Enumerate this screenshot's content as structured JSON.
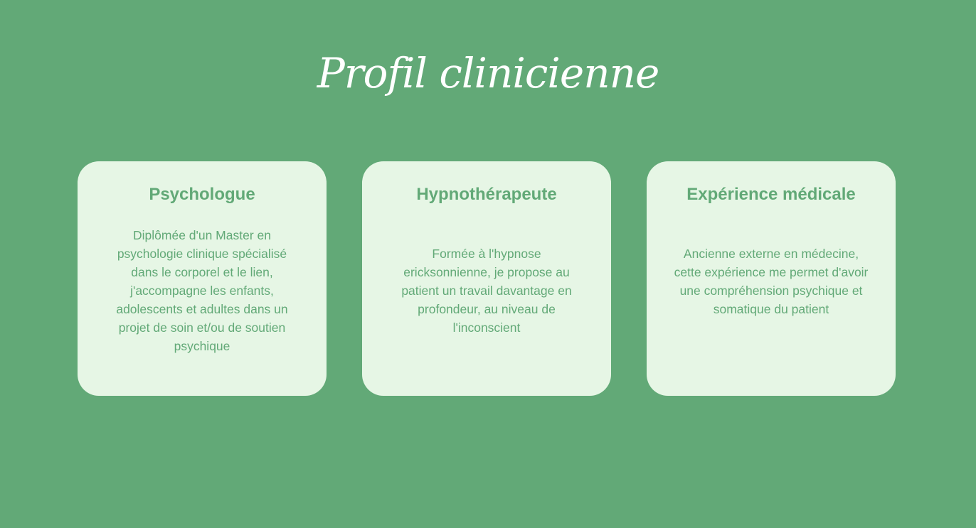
{
  "section": {
    "title": "Profil clinicienne",
    "cards": [
      {
        "title": "Psychologue",
        "text": "Diplômée d'un Master en psychologie clinique spécialisé dans le corporel et le lien, j'accompagne les enfants, adolescents et adultes dans un projet de soin et/ou de soutien psychique"
      },
      {
        "title": "Hypnothérapeute",
        "text": "Formée à l'hypnose ericksonnienne, je propose au patient un travail davantage en profondeur, au niveau de l'inconscient"
      },
      {
        "title": "Expérience médicale",
        "text": "Ancienne externe en médecine, cette expérience me permet d'avoir une compréhension psychique et somatique du patient"
      }
    ]
  },
  "colors": {
    "background": "#62a977",
    "card_background": "#e6f6e5",
    "accent_text": "#62a977",
    "title_text": "#ffffff"
  }
}
